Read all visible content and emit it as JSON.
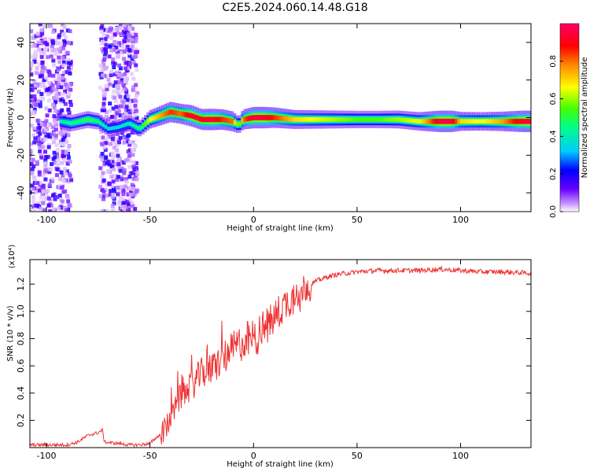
{
  "title": "C2E5.2024.060.14.48.G18",
  "chart_data": [
    {
      "type": "heatmap",
      "xlabel": "Height of straight line (km)",
      "ylabel": "Frequency (Hz)",
      "xlim": [
        -108,
        134
      ],
      "ylim": [
        -50,
        50
      ],
      "xticks": [
        -100,
        -50,
        0,
        50,
        100
      ],
      "yticks": [
        -40,
        -20,
        0,
        20,
        40
      ],
      "colorbar": {
        "label": "Normalized spectral amplitude",
        "range": [
          0,
          1
        ],
        "ticks": [
          0.0,
          0.2,
          0.4,
          0.6,
          0.8
        ],
        "tick_labels": [
          "0.0",
          "0.2",
          "0.4",
          "0.6",
          "0.8"
        ],
        "colors": [
          "#ffffff",
          "#cc99ff",
          "#6600ff",
          "#0000ff",
          "#00ccff",
          "#00ff88",
          "#44ff00",
          "#ffff00",
          "#ff8800",
          "#ff0000",
          "#ff0066"
        ]
      },
      "ridge": {
        "x": [
          -93,
          -88,
          -80,
          -75,
          -70,
          -65,
          -60,
          -55,
          -50,
          -45,
          -40,
          -35,
          -30,
          -25,
          -20,
          -15,
          -10,
          -7,
          -5,
          0,
          5,
          10,
          20,
          30,
          40,
          50,
          60,
          70,
          80,
          90,
          96,
          100,
          110,
          120,
          130,
          134
        ],
        "frequency_hz": [
          -2,
          -3,
          -1,
          -2,
          -6,
          -5,
          -3,
          -6,
          -1,
          1,
          3,
          2,
          1,
          -1,
          -1,
          -1,
          -2,
          -4,
          -1,
          0,
          0,
          0,
          -1,
          -1,
          -1,
          -1,
          -1,
          -1,
          -2,
          -2,
          -2,
          -2,
          -2,
          -2,
          -2,
          -2
        ],
        "amplitude": [
          0.4,
          0.45,
          0.5,
          0.45,
          0.35,
          0.35,
          0.4,
          0.45,
          0.65,
          0.75,
          0.85,
          0.8,
          0.95,
          0.9,
          0.95,
          0.85,
          0.8,
          0.5,
          0.8,
          0.95,
          0.95,
          0.85,
          0.7,
          0.65,
          0.6,
          0.55,
          0.55,
          0.6,
          0.65,
          0.95,
          0.95,
          0.7,
          0.65,
          0.75,
          0.95,
          0.95
        ]
      },
      "noise_bands": [
        {
          "x_range": [
            -108,
            -88
          ],
          "freq_range": [
            -50,
            50
          ]
        },
        {
          "x_range": [
            -74,
            -56
          ],
          "freq_range": [
            -50,
            50
          ]
        }
      ]
    },
    {
      "type": "line",
      "xlabel": "Height of straight line (km)",
      "ylabel": "SNR (10 * v/v)",
      "scale_label": "(x10⁴)",
      "xlim": [
        -108,
        134
      ],
      "ylim": [
        0.0,
        1.38
      ],
      "xticks": [
        -100,
        -50,
        0,
        50,
        100
      ],
      "yticks": [
        0.2,
        0.4,
        0.6,
        0.8,
        1.0,
        1.2
      ],
      "ytick_labels": [
        "0.2",
        "0.4",
        "0.6",
        "0.8",
        "1.0",
        "1.2"
      ],
      "color": "#ee3333",
      "series": [
        {
          "name": "SNR",
          "x": [
            -108,
            -90,
            -85,
            -80,
            -75,
            -73,
            -72,
            -65,
            -60,
            -55,
            -50,
            -45,
            -42,
            -40,
            -38,
            -35,
            -30,
            -25,
            -20,
            -15,
            -10,
            -5,
            0,
            5,
            10,
            15,
            20,
            25,
            30,
            35,
            40,
            50,
            60,
            70,
            80,
            90,
            100,
            110,
            120,
            134
          ],
          "values": [
            0.02,
            0.02,
            0.04,
            0.09,
            0.11,
            0.13,
            0.04,
            0.03,
            0.02,
            0.02,
            0.03,
            0.1,
            0.15,
            0.22,
            0.28,
            0.38,
            0.45,
            0.55,
            0.58,
            0.65,
            0.72,
            0.78,
            0.8,
            0.87,
            0.95,
            1.05,
            1.12,
            1.18,
            1.22,
            1.25,
            1.27,
            1.29,
            1.3,
            1.3,
            1.3,
            1.31,
            1.3,
            1.29,
            1.29,
            1.28
          ]
        }
      ]
    }
  ]
}
